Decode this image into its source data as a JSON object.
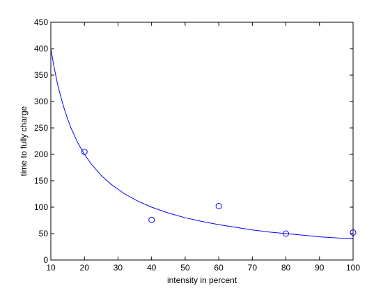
{
  "chart_data": {
    "type": "scatter",
    "title": "",
    "xlabel": "intensity in percent",
    "ylabel": "time to fully charge",
    "xlim": [
      10,
      100
    ],
    "ylim": [
      0,
      450
    ],
    "xticks": [
      10,
      20,
      30,
      40,
      50,
      60,
      70,
      80,
      90,
      100
    ],
    "yticks": [
      0,
      50,
      100,
      150,
      200,
      250,
      300,
      350,
      400,
      450
    ],
    "grid": false,
    "series": [
      {
        "kind": "markers",
        "marker": "circle",
        "color": "#0000ff",
        "x": [
          20,
          40,
          60,
          80,
          100
        ],
        "y": [
          205,
          76,
          102,
          50,
          52
        ]
      },
      {
        "kind": "line",
        "color": "#0000ff",
        "x": [
          10,
          11,
          12,
          13,
          14,
          15,
          16,
          18,
          20,
          22,
          25,
          28,
          32,
          36,
          40,
          45,
          50,
          55,
          60,
          65,
          70,
          75,
          80,
          85,
          90,
          95,
          100
        ],
        "y": [
          400,
          364,
          333,
          308,
          286,
          267,
          250,
          222,
          200,
          182,
          160,
          143,
          125,
          111,
          100,
          89,
          80,
          73,
          67,
          62,
          57,
          53,
          50,
          47,
          44,
          42,
          40
        ]
      }
    ]
  }
}
